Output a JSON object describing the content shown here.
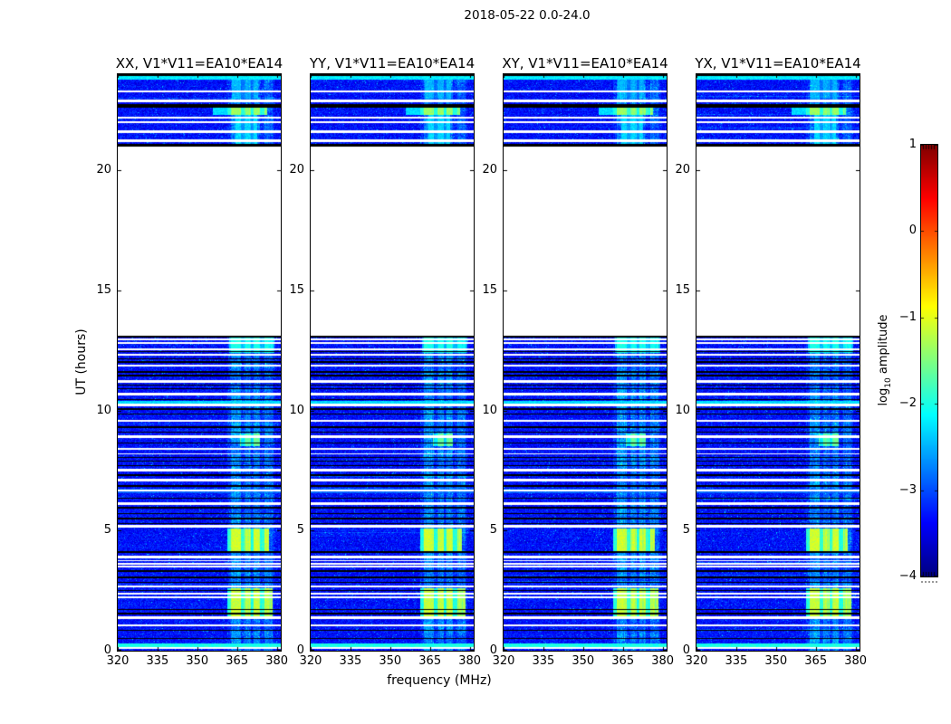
{
  "chart_data": {
    "type": "heatmap",
    "title": "2018-05-22 0.0-24.0",
    "xlabel": "frequency (MHz)",
    "ylabel": "UT (hours)",
    "panels": [
      {
        "label": "XX, V1*V11=EA10*EA14"
      },
      {
        "label": "YY, V1*V11=EA10*EA14"
      },
      {
        "label": "XY, V1*V11=EA10*EA14"
      },
      {
        "label": "YX, V1*V11=EA10*EA14"
      }
    ],
    "xlim": [
      320,
      381.5
    ],
    "ylim": [
      0,
      24
    ],
    "x_ticks": [
      320,
      335,
      350,
      365,
      380
    ],
    "x_tick_labels": [
      "320",
      "335",
      "350",
      "365",
      "380"
    ],
    "y_ticks": [
      0,
      5,
      10,
      15,
      20
    ],
    "y_tick_labels": [
      "0",
      "5",
      "10",
      "15",
      "20"
    ],
    "colorbar": {
      "label_prefix": "log",
      "label_sub": "10",
      "label_suffix": " amplitude",
      "ticks": [
        1,
        0,
        -1,
        -2,
        -3,
        -4
      ],
      "tick_labels": [
        "1",
        "0",
        "−1",
        "−2",
        "−3",
        "−4"
      ],
      "vmin": -4,
      "vmax": 1,
      "colormap": "jet"
    },
    "background_level": -3.55,
    "data_segments": [
      [
        0,
        13.12
      ],
      [
        21.0,
        24.0
      ]
    ],
    "rfi_bands": [
      {
        "f": [
          361.5,
          379.0
        ],
        "boost": 0.3
      },
      {
        "f": [
          362.8,
          366.3
        ],
        "boost": 0.75
      },
      {
        "f": [
          368.0,
          370.3
        ],
        "boost": 0.5
      },
      {
        "f": [
          371.3,
          373.8
        ],
        "boost": 0.6
      },
      {
        "f": [
          375.3,
          378.3
        ],
        "boost": 0.45
      }
    ],
    "events": [
      {
        "t": [
          4.15,
          5.1
        ],
        "f": [
          361.5,
          377.0
        ],
        "peak": -1.1,
        "bg": -2.4
      },
      {
        "t": [
          1.35,
          2.6
        ],
        "f": [
          361.5,
          378.5
        ],
        "peak": -1.15,
        "bg": -2.4
      },
      {
        "t": [
          8.5,
          9.05
        ],
        "f": [
          366.0,
          373.5
        ],
        "peak": -1.6,
        "bg": -2.6
      },
      {
        "t": [
          12.4,
          13.12
        ],
        "f": [
          362.0,
          379.0
        ],
        "peak": -2.0,
        "bg": -2.7
      },
      {
        "t": [
          22.3,
          22.62
        ],
        "f": [
          356.0,
          376.5
        ],
        "peak": -1.35,
        "bg": -2.3
      },
      {
        "t": [
          21.0,
          22.3
        ],
        "f": [
          364.5,
          372.5
        ],
        "peak": -2.3,
        "bg": -2.8
      },
      {
        "t": [
          23.0,
          23.9
        ],
        "f": [
          363.0,
          373.0
        ],
        "peak": -2.5,
        "bg": -3.0
      },
      {
        "t": [
          10.28,
          10.38
        ],
        "f": [
          320,
          381.5
        ],
        "peak": -2.3,
        "bg": -2.3
      },
      {
        "t": [
          6.55,
          6.75
        ],
        "f": [
          320,
          381.5
        ],
        "peak": -2.9,
        "bg": -2.9
      },
      {
        "t": [
          0.16,
          0.3
        ],
        "f": [
          320,
          381.5
        ],
        "peak": -2.0,
        "bg": -2.0
      },
      {
        "t": [
          23.78,
          23.92
        ],
        "f": [
          320,
          381.5
        ],
        "peak": -2.2,
        "bg": -2.2
      }
    ],
    "white_gaps": [
      [
        0.08,
        0.16
      ],
      [
        1.02,
        1.1
      ],
      [
        1.32,
        1.42
      ],
      [
        2.18,
        2.26
      ],
      [
        2.33,
        2.4
      ],
      [
        2.62,
        2.72
      ],
      [
        3.47,
        3.53
      ],
      [
        3.58,
        3.64
      ],
      [
        3.72,
        3.78
      ],
      [
        3.86,
        3.94
      ],
      [
        5.12,
        5.22
      ],
      [
        6.08,
        6.18
      ],
      [
        6.62,
        6.7
      ],
      [
        7.06,
        7.16
      ],
      [
        7.47,
        7.56
      ],
      [
        8.17,
        8.23
      ],
      [
        8.37,
        8.45
      ],
      [
        8.86,
        8.95
      ],
      [
        9.52,
        9.62
      ],
      [
        10.17,
        10.27
      ],
      [
        10.62,
        10.72
      ],
      [
        11.17,
        11.27
      ],
      [
        11.82,
        11.92
      ],
      [
        12.27,
        12.35
      ],
      [
        12.52,
        12.6
      ],
      [
        12.77,
        12.84
      ],
      [
        12.92,
        12.98
      ],
      [
        21.18,
        21.28
      ],
      [
        21.55,
        21.65
      ],
      [
        21.95,
        22.05
      ],
      [
        22.17,
        22.24
      ],
      [
        22.82,
        22.95
      ],
      [
        23.25,
        23.33
      ]
    ],
    "black_lines": [
      [
        0.48,
        0.54
      ],
      [
        0.83,
        0.88
      ],
      [
        1.52,
        1.57
      ],
      [
        1.68,
        1.74
      ],
      [
        2.48,
        2.53
      ],
      [
        2.82,
        2.88
      ],
      [
        3.02,
        3.08
      ],
      [
        3.28,
        3.34
      ],
      [
        4.08,
        4.14
      ],
      [
        5.28,
        5.33
      ],
      [
        5.48,
        5.53
      ],
      [
        5.68,
        5.74
      ],
      [
        5.93,
        5.99
      ],
      [
        6.32,
        6.38
      ],
      [
        6.82,
        6.88
      ],
      [
        7.28,
        7.34
      ],
      [
        7.68,
        7.73
      ],
      [
        7.86,
        7.92
      ],
      [
        8.03,
        8.08
      ],
      [
        8.62,
        8.68
      ],
      [
        9.08,
        9.13
      ],
      [
        9.28,
        9.34
      ],
      [
        9.82,
        9.88
      ],
      [
        10.03,
        10.08
      ],
      [
        10.43,
        10.49
      ],
      [
        10.88,
        10.93
      ],
      [
        11.03,
        11.08
      ],
      [
        11.43,
        11.49
      ],
      [
        11.58,
        11.63
      ],
      [
        11.98,
        12.04
      ],
      [
        12.13,
        12.18
      ],
      [
        12.43,
        12.48
      ],
      [
        13.04,
        13.12
      ],
      [
        20.98,
        21.1
      ],
      [
        22.62,
        22.74
      ],
      [
        23.92,
        24.0
      ]
    ]
  }
}
